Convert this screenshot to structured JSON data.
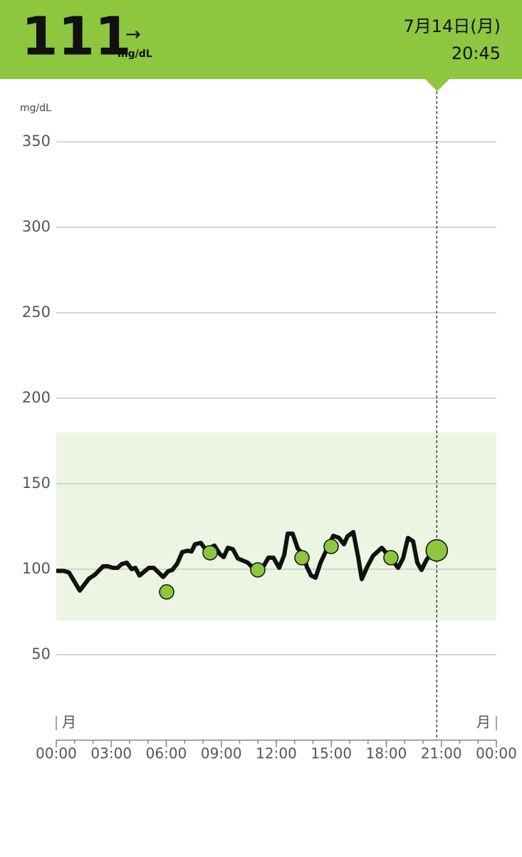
{
  "header": {
    "value": 111,
    "trend": "→",
    "unit": "mg/dL",
    "date": "7月14日(月)",
    "time": "20:45"
  },
  "chart_data": {
    "type": "line",
    "y_label": "mg/dL",
    "xlim": [
      0,
      24
    ],
    "xticks": [
      {
        "value": 0,
        "label": "00:00"
      },
      {
        "value": 3,
        "label": "03:00"
      },
      {
        "value": 6,
        "label": "06:00"
      },
      {
        "value": 9,
        "label": "09:00"
      },
      {
        "value": 12,
        "label": "12:00"
      },
      {
        "value": 15,
        "label": "15:00"
      },
      {
        "value": 18,
        "label": "18:00"
      },
      {
        "value": 21,
        "label": "21:00"
      },
      {
        "value": 24,
        "label": "00:00"
      }
    ],
    "xticks_minor": [
      0,
      1,
      2,
      3,
      4,
      5,
      6,
      7,
      8,
      9,
      10,
      11,
      12,
      13,
      14,
      15,
      16,
      17,
      18,
      19,
      20,
      21,
      22,
      23,
      24
    ],
    "ylim": [
      0,
      380
    ],
    "yticks": [
      50,
      100,
      150,
      200,
      250,
      300,
      350
    ],
    "grid": true,
    "day_labels": [
      "月",
      "月"
    ],
    "target_range": [
      70,
      180
    ],
    "target_color": "#ecf5e2",
    "line": {
      "color": "#111111",
      "x": [
        0,
        0.43,
        0.7,
        1.28,
        1.79,
        2.1,
        2.56,
        2.83,
        3.07,
        3.34,
        3.57,
        3.84,
        4.12,
        4.31,
        4.54,
        5.05,
        5.32,
        5.83,
        6.1,
        6.33,
        6.6,
        6.87,
        7.15,
        7.38,
        7.57,
        7.88,
        8.16,
        8.62,
        8.93,
        9.13,
        9.36,
        9.63,
        9.9,
        10.45,
        10.72,
        11.3,
        11.57,
        11.84,
        12.16,
        12.43,
        12.62,
        12.89,
        13.17,
        13.48,
        13.67,
        13.9,
        14.14,
        14.41,
        14.72,
        15.11,
        15.42,
        15.69,
        15.88,
        16.2,
        16.47,
        16.66,
        16.97,
        17.28,
        17.75,
        18.02,
        18.3,
        18.64,
        18.91,
        19.18,
        19.46,
        19.69,
        19.92,
        20.19,
        20.47
      ],
      "values": [
        99,
        99,
        98,
        87.5,
        94.6,
        96.7,
        101.7,
        101.7,
        100.8,
        100.8,
        103,
        103.8,
        100,
        100.8,
        96.3,
        100.8,
        100.8,
        95.4,
        98.8,
        99.6,
        103.3,
        110,
        110.8,
        110.4,
        114.6,
        115.4,
        111.3,
        113.8,
        108.8,
        107.1,
        112.5,
        111.7,
        106.3,
        103.8,
        100.8,
        101.7,
        106.7,
        106.7,
        100.8,
        108.3,
        120.8,
        120.8,
        112.1,
        108.3,
        101.3,
        96.3,
        95,
        103.8,
        110.8,
        119.6,
        118.3,
        114.6,
        119.2,
        121.7,
        106.7,
        94.2,
        101.7,
        107.9,
        112.5,
        109.2,
        105.8,
        100.8,
        106.3,
        118.3,
        116.3,
        103.8,
        99.6,
        105.4,
        109.6
      ]
    },
    "points": {
      "color": "#8dc63f",
      "x": [
        6.02,
        8.39,
        10.99,
        13.4,
        14.99,
        18.25
      ],
      "values": [
        86.7,
        109.6,
        99.6,
        106.7,
        113.3,
        106.7
      ]
    },
    "current": {
      "x": 20.75,
      "value": 111
    }
  }
}
